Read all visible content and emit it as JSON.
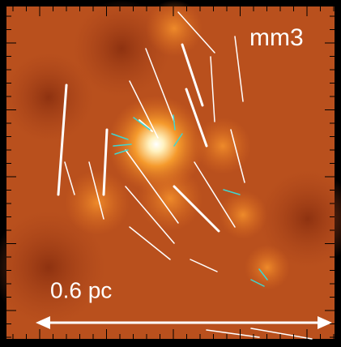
{
  "panel": {
    "label": "mm3"
  },
  "scale_bar": {
    "label": "0.6 pc"
  }
}
